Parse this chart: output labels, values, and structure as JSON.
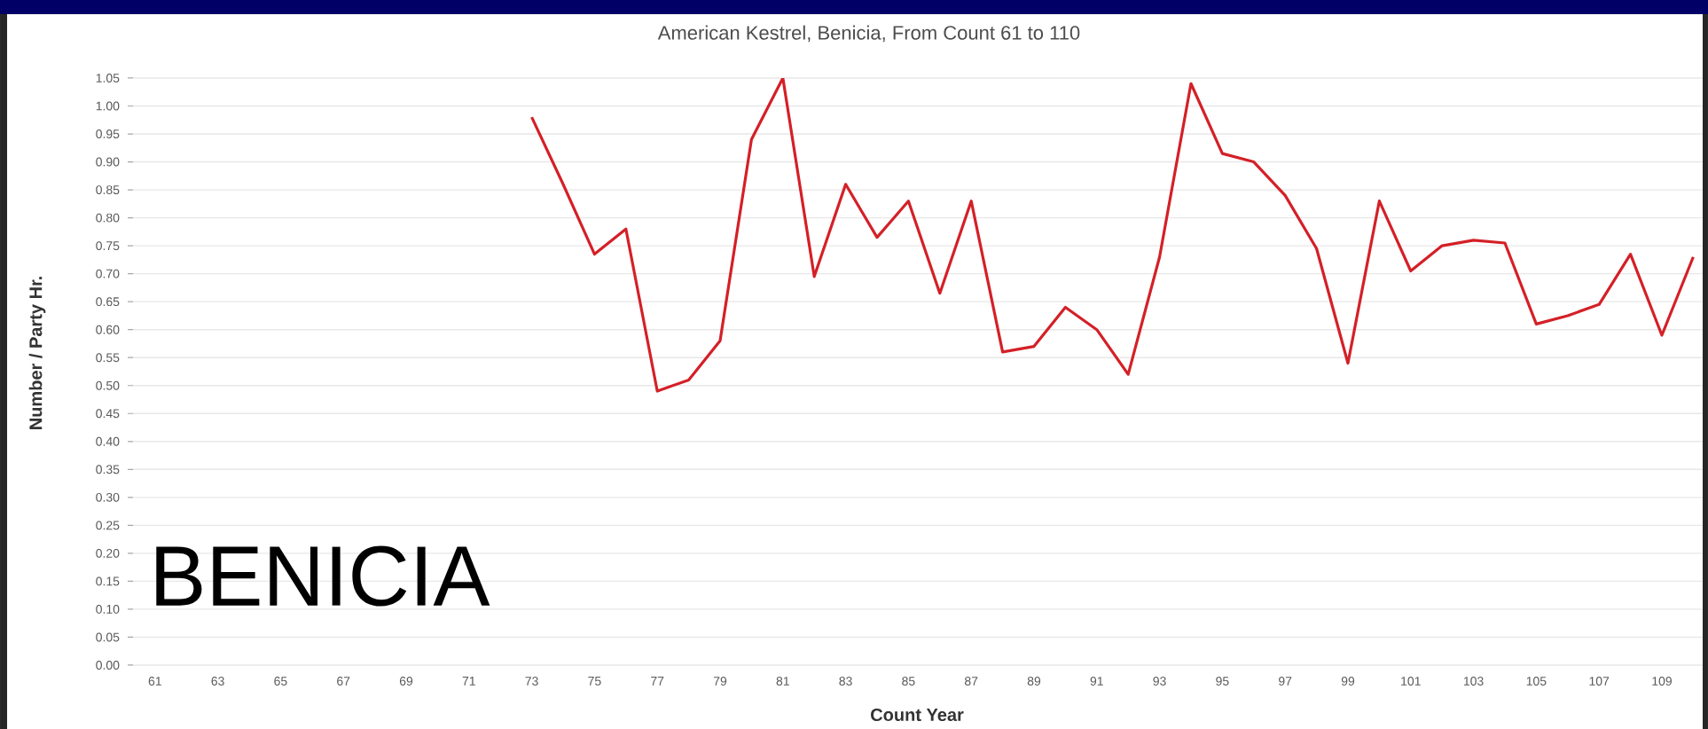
{
  "chart_data": {
    "type": "line",
    "title": "American Kestrel, Benicia,  From Count 61 to 110",
    "xlabel": "Count Year",
    "ylabel": "Number / Party Hr.",
    "x": [
      73,
      74,
      75,
      76,
      77,
      78,
      79,
      80,
      81,
      82,
      83,
      84,
      85,
      86,
      87,
      88,
      89,
      90,
      91,
      92,
      93,
      94,
      95,
      96,
      97,
      98,
      99,
      100,
      101,
      102,
      103,
      104,
      105,
      106,
      107,
      108,
      109,
      110
    ],
    "values": [
      0.98,
      0.86,
      0.735,
      0.78,
      0.49,
      0.51,
      0.58,
      0.94,
      1.05,
      0.695,
      0.86,
      0.765,
      0.83,
      0.665,
      0.83,
      0.56,
      0.57,
      0.64,
      0.6,
      0.52,
      0.73,
      1.04,
      0.915,
      0.9,
      0.84,
      0.745,
      0.54,
      0.83,
      0.705,
      0.75,
      0.76,
      0.755,
      0.61,
      0.625,
      0.645,
      0.735,
      0.59,
      0.73
    ],
    "color": "#d42027",
    "xlim": [
      60.3,
      110.3
    ],
    "ylim": [
      0,
      1.05
    ],
    "xticks": [
      61,
      63,
      65,
      67,
      69,
      71,
      73,
      75,
      77,
      79,
      81,
      83,
      85,
      87,
      89,
      91,
      93,
      95,
      97,
      99,
      101,
      103,
      105,
      107,
      109
    ],
    "yticks": [
      {
        "value": 0,
        "label": "0.00"
      },
      {
        "value": 0.05,
        "label": "0.05"
      },
      {
        "value": 0.1,
        "label": "0.10"
      },
      {
        "value": 0.15,
        "label": "0.15"
      },
      {
        "value": 0.2,
        "label": "0.20"
      },
      {
        "value": 0.25,
        "label": "0.25"
      },
      {
        "value": 0.3,
        "label": "0.30"
      },
      {
        "value": 0.35,
        "label": "0.35"
      },
      {
        "value": 0.4,
        "label": "0.40"
      },
      {
        "value": 0.45,
        "label": "0.45"
      },
      {
        "value": 0.5,
        "label": "0.50"
      },
      {
        "value": 0.55,
        "label": "0.55"
      },
      {
        "value": 0.6,
        "label": "0.60"
      },
      {
        "value": 0.65,
        "label": "0.65"
      },
      {
        "value": 0.7,
        "label": "0.70"
      },
      {
        "value": 0.75,
        "label": "0.75"
      },
      {
        "value": 0.8,
        "label": "0.80"
      },
      {
        "value": 0.85,
        "label": "0.85"
      },
      {
        "value": 0.9,
        "label": "0.90"
      },
      {
        "value": 0.95,
        "label": "0.95"
      },
      {
        "value": 1.0,
        "label": "1.00"
      },
      {
        "value": 1.05,
        "label": "1.05"
      }
    ],
    "grid": "y",
    "annotations": [
      "BENICIA"
    ]
  }
}
